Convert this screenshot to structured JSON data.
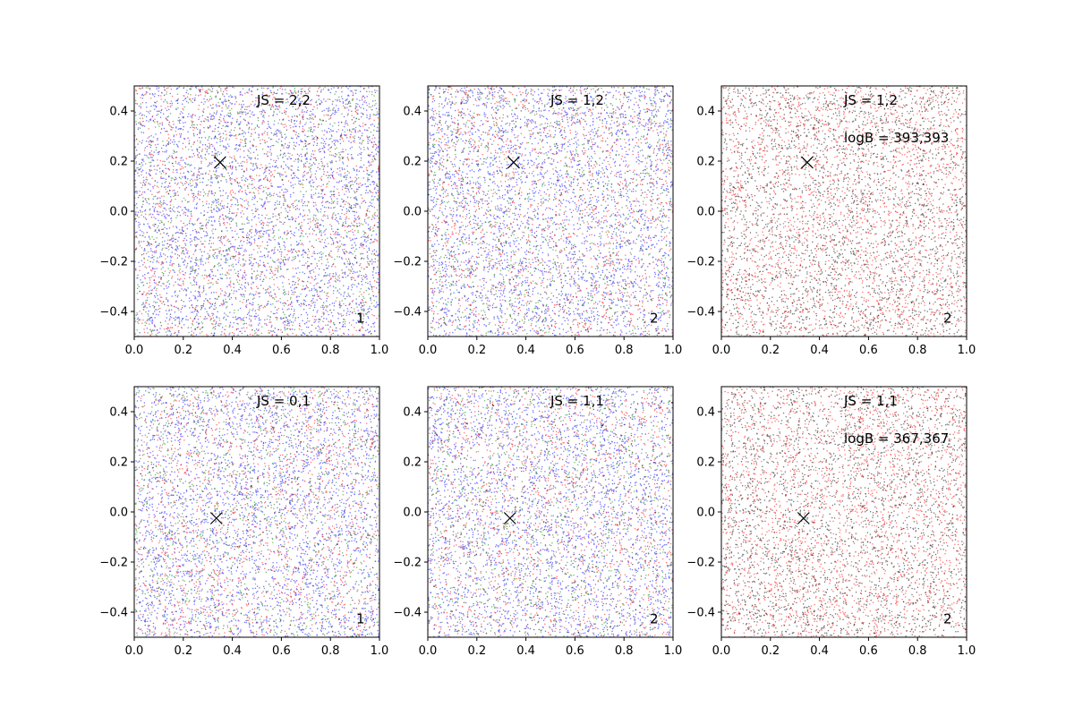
{
  "chart_data": [
    {
      "type": "scatter",
      "xlim": [
        0.0,
        1.0
      ],
      "ylim": [
        -0.5,
        0.5
      ],
      "x_ticks": [
        "0.0",
        "0.2",
        "0.4",
        "0.6",
        "0.8",
        "1.0"
      ],
      "y_ticks": [
        "−0.4",
        "−0.2",
        "0.0",
        "0.2",
        "0.4"
      ],
      "annotation": "JS = 2,2",
      "corner_label": "1",
      "marker": {
        "symbol": "x",
        "x": 0.35,
        "y": 0.195
      },
      "series": [
        {
          "color": "#0000ff",
          "points": 3000
        },
        {
          "color": "#ff0000",
          "points": 1500
        },
        {
          "color": "#008000",
          "points": 1000
        },
        {
          "color": "#000000",
          "points": 400
        }
      ]
    },
    {
      "type": "scatter",
      "xlim": [
        0.0,
        1.0
      ],
      "ylim": [
        -0.5,
        0.5
      ],
      "x_ticks": [
        "0.0",
        "0.2",
        "0.4",
        "0.6",
        "0.8",
        "1.0"
      ],
      "y_ticks": [
        "−0.4",
        "−0.2",
        "0.0",
        "0.2",
        "0.4"
      ],
      "annotation": "JS = 1,2",
      "corner_label": "2",
      "marker": {
        "symbol": "x",
        "x": 0.35,
        "y": 0.195
      },
      "series": [
        {
          "color": "#0000ff",
          "points": 3000
        },
        {
          "color": "#ff0000",
          "points": 1500
        },
        {
          "color": "#008000",
          "points": 1000
        },
        {
          "color": "#000000",
          "points": 400
        }
      ]
    },
    {
      "type": "scatter",
      "xlim": [
        0.0,
        1.0
      ],
      "ylim": [
        -0.5,
        0.5
      ],
      "x_ticks": [
        "0.0",
        "0.2",
        "0.4",
        "0.6",
        "0.8",
        "1.0"
      ],
      "y_ticks": [
        "−0.4",
        "−0.2",
        "0.0",
        "0.2",
        "0.4"
      ],
      "annotation": "JS = 1,2",
      "annotation2": "logB = 393,393",
      "corner_label": "2",
      "marker": {
        "symbol": "x",
        "x": 0.35,
        "y": 0.195
      },
      "series": [
        {
          "color": "#ff0000",
          "points": 2600
        },
        {
          "color": "#000000",
          "points": 2600
        }
      ]
    },
    {
      "type": "scatter",
      "xlim": [
        0.0,
        1.0
      ],
      "ylim": [
        -0.5,
        0.5
      ],
      "x_ticks": [
        "0.0",
        "0.2",
        "0.4",
        "0.6",
        "0.8",
        "1.0"
      ],
      "y_ticks": [
        "−0.4",
        "−0.2",
        "0.0",
        "0.2",
        "0.4"
      ],
      "annotation": "JS = 0,1",
      "corner_label": "1",
      "marker": {
        "symbol": "x",
        "x": 0.335,
        "y": -0.025
      },
      "series": [
        {
          "color": "#0000ff",
          "points": 3000
        },
        {
          "color": "#ff0000",
          "points": 1500
        },
        {
          "color": "#008000",
          "points": 1000
        },
        {
          "color": "#000000",
          "points": 400
        }
      ]
    },
    {
      "type": "scatter",
      "xlim": [
        0.0,
        1.0
      ],
      "ylim": [
        -0.5,
        0.5
      ],
      "x_ticks": [
        "0.0",
        "0.2",
        "0.4",
        "0.6",
        "0.8",
        "1.0"
      ],
      "y_ticks": [
        "−0.4",
        "−0.2",
        "0.0",
        "0.2",
        "0.4"
      ],
      "annotation": "JS = 1,1",
      "corner_label": "2",
      "marker": {
        "symbol": "x",
        "x": 0.335,
        "y": -0.025
      },
      "series": [
        {
          "color": "#0000ff",
          "points": 3000
        },
        {
          "color": "#ff0000",
          "points": 1500
        },
        {
          "color": "#008000",
          "points": 1000
        },
        {
          "color": "#000000",
          "points": 400
        }
      ]
    },
    {
      "type": "scatter",
      "xlim": [
        0.0,
        1.0
      ],
      "ylim": [
        -0.5,
        0.5
      ],
      "x_ticks": [
        "0.0",
        "0.2",
        "0.4",
        "0.6",
        "0.8",
        "1.0"
      ],
      "y_ticks": [
        "−0.4",
        "−0.2",
        "0.0",
        "0.2",
        "0.4"
      ],
      "annotation": "JS = 1,1",
      "annotation2": "logB = 367,367",
      "corner_label": "2",
      "marker": {
        "symbol": "x",
        "x": 0.335,
        "y": -0.025
      },
      "series": [
        {
          "color": "#ff0000",
          "points": 2600
        },
        {
          "color": "#000000",
          "points": 2600
        }
      ]
    }
  ]
}
